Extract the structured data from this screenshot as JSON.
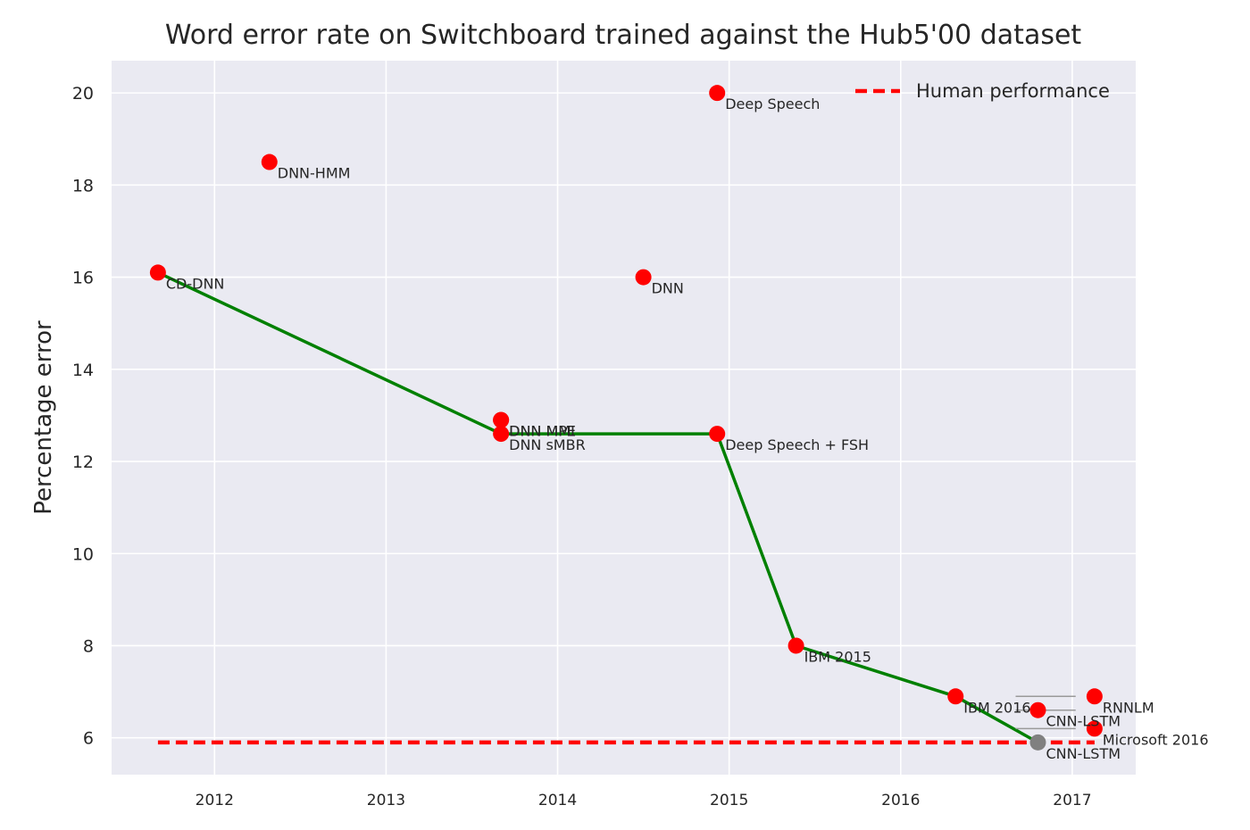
{
  "chart_data": {
    "type": "scatter",
    "title": "Word error rate on Switchboard trained against the Hub5'00 dataset",
    "xlabel": "",
    "ylabel": "Percentage error",
    "xlim": [
      2011.4,
      2017.37
    ],
    "ylim": [
      5.2,
      20.7
    ],
    "x_ticks": [
      2012,
      2013,
      2014,
      2015,
      2016,
      2017
    ],
    "y_ticks": [
      6,
      8,
      10,
      12,
      14,
      16,
      18,
      20
    ],
    "grid": true,
    "legend_placement": "top-right",
    "points": [
      {
        "label": "CD-DNN",
        "x": 2011.67,
        "y": 16.1,
        "color": "#ff0000"
      },
      {
        "label": "DNN-HMM",
        "x": 2012.32,
        "y": 18.5,
        "color": "#ff0000"
      },
      {
        "label": "DNN MMI",
        "x": 2013.67,
        "y": 12.9,
        "color": "#ff0000"
      },
      {
        "label": "DNN MPE",
        "x": 2013.67,
        "y": 12.9,
        "color": "#ff0000"
      },
      {
        "label": "DNN sMBR",
        "x": 2013.67,
        "y": 12.6,
        "color": "#ff0000"
      },
      {
        "label": "DNN",
        "x": 2014.5,
        "y": 16.0,
        "color": "#ff0000"
      },
      {
        "label": "Deep Speech",
        "x": 2014.93,
        "y": 20.0,
        "color": "#ff0000"
      },
      {
        "label": "Deep Speech + FSH",
        "x": 2014.93,
        "y": 12.6,
        "color": "#ff0000"
      },
      {
        "label": "IBM 2015",
        "x": 2015.39,
        "y": 8.0,
        "color": "#ff0000"
      },
      {
        "label": "IBM 2016",
        "x": 2016.32,
        "y": 6.9,
        "color": "#ff0000"
      },
      {
        "label": "CNN-LSTM",
        "x": 2016.8,
        "y": 6.6,
        "color": "#ff0000"
      },
      {
        "label": "RNNLM",
        "x": 2017.13,
        "y": 6.9,
        "color": "#ff0000"
      },
      {
        "label": "Microsoft 2016",
        "x": 2017.13,
        "y": 6.2,
        "color": "#ff0000"
      },
      {
        "label": "CNN-LSTM",
        "x": 2016.8,
        "y": 5.9,
        "color": "#808080"
      }
    ],
    "series": [
      {
        "kind": "best-so-far line",
        "color": "#008000",
        "points": [
          {
            "x": 2011.67,
            "y": 16.1
          },
          {
            "x": 2013.67,
            "y": 12.6
          },
          {
            "x": 2014.93,
            "y": 12.6
          },
          {
            "x": 2015.39,
            "y": 8.0
          },
          {
            "x": 2016.32,
            "y": 6.9
          },
          {
            "x": 2016.8,
            "y": 5.9
          }
        ]
      },
      {
        "name": "Human performance",
        "kind": "dashed",
        "color": "#ff0000",
        "points": [
          {
            "x": 2011.67,
            "y": 5.9
          },
          {
            "x": 2017.13,
            "y": 5.9
          }
        ]
      }
    ],
    "legend": [
      {
        "label": "Human performance",
        "color": "#ff0000",
        "style": "dashed"
      }
    ]
  }
}
